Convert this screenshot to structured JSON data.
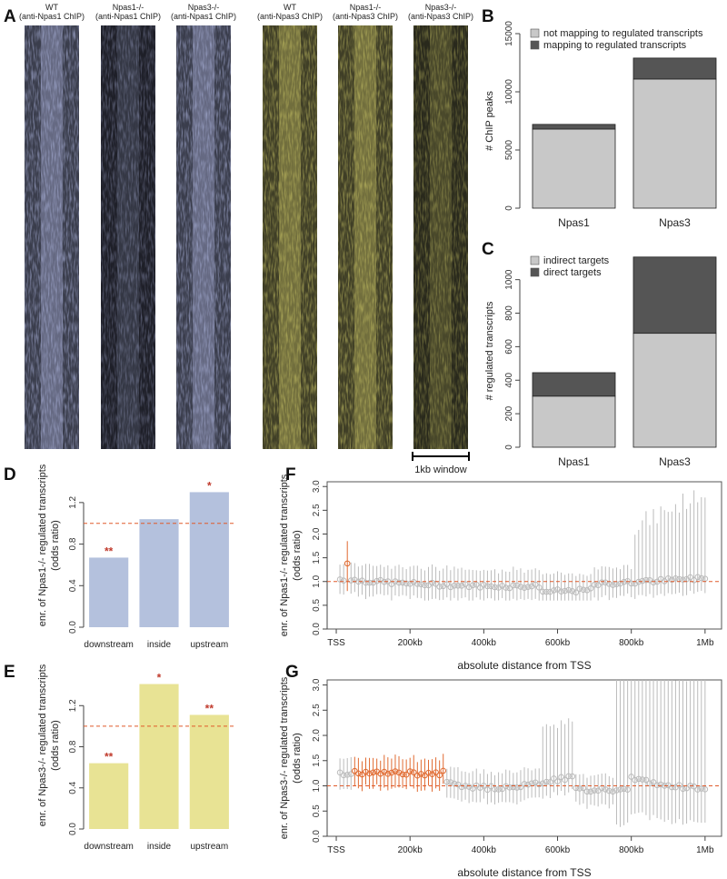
{
  "panel_letters": [
    "A",
    "B",
    "C",
    "D",
    "E",
    "F",
    "G"
  ],
  "heatmap_titles": [
    [
      "WT",
      "(anti-Npas1 ChIP)"
    ],
    [
      "Npas1-/-",
      "(anti-Npas1 ChIP)"
    ],
    [
      "Npas3-/-",
      "(anti-Npas1 ChIP)"
    ],
    [
      "WT",
      "(anti-Npas3 ChIP)"
    ],
    [
      "Npas1-/-",
      "(anti-Npas3 ChIP)"
    ],
    [
      "Npas3-/-",
      "(anti-Npas3 ChIP)"
    ]
  ],
  "scale_bar_label": "1kb window",
  "colors": {
    "heatmap_npas1": "#aab2da",
    "heatmap_npas3": "#c9c466",
    "stack_light": "#c8c8c8",
    "stack_dark": "#555555",
    "bar_blue": "#b4c1dd",
    "bar_yellow": "#e8e394",
    "ref_line": "#e05a2b",
    "star": "#c0392b",
    "ci_grey": "#bbbbbb",
    "sig_orange": "#e06a30"
  },
  "chart_data": [
    {
      "id": "B",
      "type": "bar",
      "stacked": true,
      "categories": [
        "Npas1",
        "Npas3"
      ],
      "series": [
        {
          "name": "not mapping to regulated transcripts",
          "values": [
            6800,
            11100
          ]
        },
        {
          "name": "mapping to regulated transcripts",
          "values": [
            400,
            1800
          ]
        }
      ],
      "ylabel": "# ChIP peaks",
      "ylim": [
        0,
        15000
      ],
      "yticks": [
        0,
        5000,
        10000,
        15000
      ],
      "legend": "top-left"
    },
    {
      "id": "C",
      "type": "bar",
      "stacked": true,
      "categories": [
        "Npas1",
        "Npas3"
      ],
      "series": [
        {
          "name": "indirect targets",
          "values": [
            305,
            680
          ]
        },
        {
          "name": "direct targets",
          "values": [
            140,
            455
          ]
        }
      ],
      "ylabel": "# regulated transcripts",
      "ylim": [
        0,
        1150
      ],
      "yticks": [
        0,
        200,
        400,
        600,
        800,
        1000
      ],
      "legend": "top-left"
    },
    {
      "id": "D",
      "type": "bar",
      "categories": [
        "downstream",
        "inside",
        "upstream"
      ],
      "values": [
        0.67,
        1.04,
        1.3
      ],
      "stars": [
        "**",
        "",
        "*"
      ],
      "ylabel": "enr. of Npas1-/- regulated transcripts (odds ratio)",
      "ylim": [
        0,
        1.4
      ],
      "yticks": [
        "0.0",
        "0.4",
        "0.8",
        "1.2"
      ],
      "refline": 1.0
    },
    {
      "id": "E",
      "type": "bar",
      "categories": [
        "downstream",
        "inside",
        "upstream"
      ],
      "values": [
        0.64,
        1.41,
        1.11
      ],
      "stars": [
        "**",
        "*",
        "**"
      ],
      "ylabel": "enr. of Npas3-/- regulated transcripts (odds ratio)",
      "ylim": [
        0,
        1.45
      ],
      "yticks": [
        "0.0",
        "0.4",
        "0.8",
        "1.2"
      ],
      "refline": 1.0
    },
    {
      "id": "F",
      "type": "scatter",
      "variant": "Npas1",
      "xlabel": "absolute distance from TSS",
      "xticks": [
        "TSS",
        "200kb",
        "400kb",
        "600kb",
        "800kb",
        "1Mb"
      ],
      "xlim": [
        -5,
        1025
      ],
      "ylabel": "enr. of Npas1-/- regulated transcripts (odds ratio)",
      "ylim": [
        0,
        3.1
      ],
      "yticks": [
        "0.0",
        "0.5",
        "1.0",
        "1.5",
        "2.0",
        "2.5",
        "3.0"
      ],
      "refline": 1.0
    },
    {
      "id": "G",
      "type": "scatter",
      "variant": "Npas3",
      "xlabel": "absolute distance from TSS",
      "xticks": [
        "TSS",
        "200kb",
        "400kb",
        "600kb",
        "800kb",
        "1Mb"
      ],
      "xlim": [
        -5,
        1025
      ],
      "ylabel": "enr. of Npas3-/- regulated transcripts (odds ratio)",
      "ylim": [
        0,
        3.1
      ],
      "yticks": [
        "0.0",
        "0.5",
        "1.0",
        "1.5",
        "2.0",
        "2.5",
        "3.0"
      ],
      "refline": 1.0
    }
  ]
}
